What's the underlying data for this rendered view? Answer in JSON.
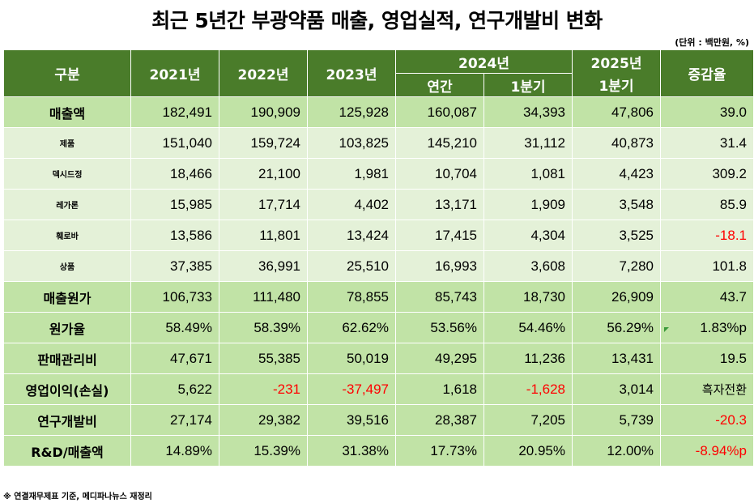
{
  "title": "최근 5년간 부광약품 매출, 영업실적, 연구개발비 변화",
  "unit": "(단위 : 백만원, %)",
  "header": {
    "category": "구분",
    "y2021": "2021년",
    "y2022": "2022년",
    "y2023": "2023년",
    "y2024": "2024년",
    "y2024_annual": "연간",
    "y2024_q1": "1분기",
    "y2025": "2025년",
    "y2025_q1": "1분기",
    "change": "증감율"
  },
  "rows": [
    {
      "label": "매출액",
      "values": [
        "182,491",
        "190,909",
        "125,928",
        "160,087",
        "34,393",
        "47,806",
        "39.0"
      ]
    },
    {
      "label": "제품",
      "values": [
        "151,040",
        "159,724",
        "103,825",
        "145,210",
        "31,112",
        "40,873",
        "31.4"
      ]
    },
    {
      "label": "덱시드정",
      "values": [
        "18,466",
        "21,100",
        "1,981",
        "10,704",
        "1,081",
        "4,423",
        "309.2"
      ]
    },
    {
      "label": "레가론",
      "values": [
        "15,985",
        "17,714",
        "4,402",
        "13,171",
        "1,909",
        "3,548",
        "85.9"
      ]
    },
    {
      "label": "훼로바",
      "values": [
        "13,586",
        "11,801",
        "13,424",
        "17,415",
        "4,304",
        "3,525",
        "-18.1"
      ]
    },
    {
      "label": "상품",
      "values": [
        "37,385",
        "36,991",
        "25,510",
        "16,993",
        "3,608",
        "7,280",
        "101.8"
      ]
    },
    {
      "label": "매출원가",
      "values": [
        "106,733",
        "111,480",
        "78,855",
        "85,743",
        "18,730",
        "26,909",
        "43.7"
      ]
    },
    {
      "label": "원가율",
      "values": [
        "58.49%",
        "58.39%",
        "62.62%",
        "53.56%",
        "54.46%",
        "56.29%",
        "1.83%p"
      ]
    },
    {
      "label": "판매관리비",
      "values": [
        "47,671",
        "55,385",
        "50,019",
        "49,295",
        "11,236",
        "13,431",
        "19.5"
      ]
    },
    {
      "label": "영업이익(손실)",
      "values": [
        "5,622",
        "-231",
        "-37,497",
        "1,618",
        "-1,628",
        "3,014",
        "흑자전환"
      ]
    },
    {
      "label": "연구개발비",
      "values": [
        "27,174",
        "29,382",
        "39,516",
        "28,387",
        "7,205",
        "5,739",
        "-20.3"
      ]
    },
    {
      "label": "R&D/매출액",
      "values": [
        "14.89%",
        "15.39%",
        "31.38%",
        "17.73%",
        "20.95%",
        "12.00%",
        "-8.94%p"
      ]
    }
  ],
  "footnote": "※ 연결재무제표 기준, 메디파나뉴스 재정리",
  "colors": {
    "header_bg": "#4a7c2a",
    "major_row": "#c1e3a6",
    "minor_row": "#e4f1d8",
    "negative": "#ff0000"
  }
}
